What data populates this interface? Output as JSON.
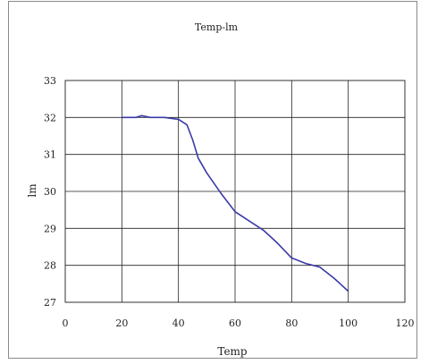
{
  "chart_data": {
    "type": "line",
    "title": "Temp-lm",
    "xlabel": "Temp",
    "ylabel": "lm",
    "xlim": [
      0,
      120
    ],
    "ylim": [
      27,
      33
    ],
    "x_ticks": [
      0,
      20,
      40,
      60,
      80,
      100,
      120
    ],
    "y_ticks": [
      27,
      28,
      29,
      30,
      31,
      32,
      33
    ],
    "grid": true,
    "legend": "none",
    "series": [
      {
        "color": "#3a3aa8",
        "x": [
          20,
          25,
          27,
          30,
          35,
          40,
          43,
          45,
          47,
          50,
          55,
          60,
          65,
          70,
          75,
          80,
          85,
          90,
          95,
          100
        ],
        "y": [
          32.0,
          32.0,
          32.05,
          32.0,
          32.0,
          31.95,
          31.8,
          31.4,
          30.9,
          30.5,
          29.95,
          29.45,
          29.2,
          28.95,
          28.6,
          28.2,
          28.05,
          27.95,
          27.65,
          27.3
        ]
      }
    ]
  }
}
